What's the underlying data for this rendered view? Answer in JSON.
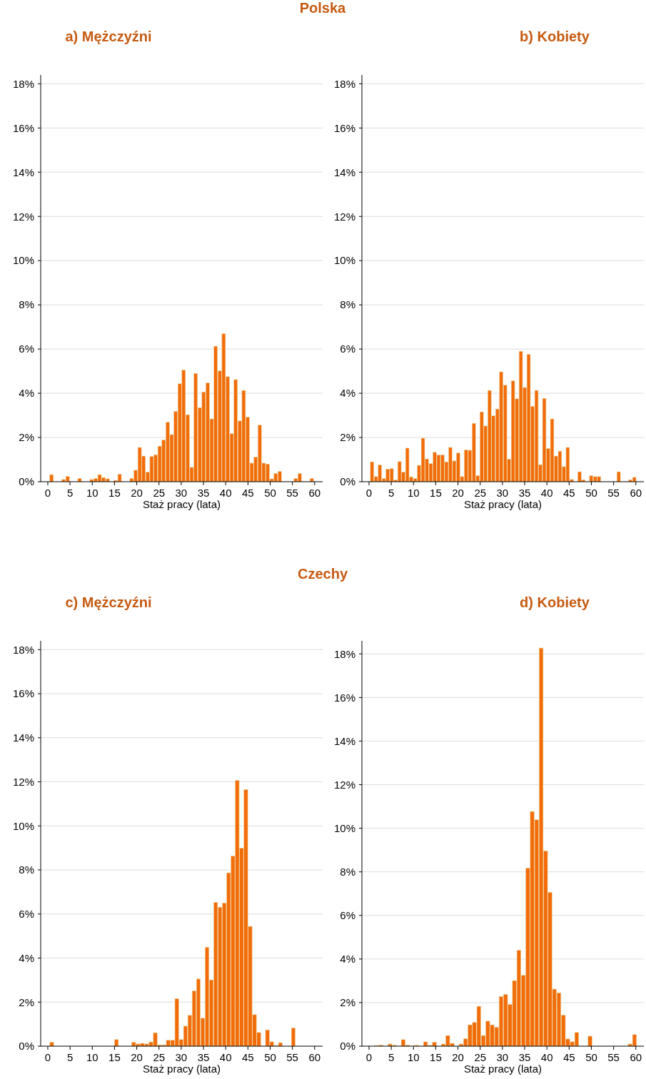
{
  "chart_data": [
    {
      "type": "histogram",
      "title": "a) Mężczyźni",
      "annotations": [
        "Polska"
      ],
      "xlabel": "Staż pracy (lata)",
      "color": "#f36c0a",
      "grid": "y",
      "bins": [
        0.4,
        1.3,
        2.2,
        3.1,
        4.0,
        4.9,
        5.8,
        6.7,
        7.6,
        8.5,
        9.4,
        10.3,
        11.2,
        12.1,
        13.0,
        13.9,
        14.8,
        15.7,
        16.6,
        17.5,
        18.4,
        19.3,
        20.2,
        21.1,
        22.0,
        22.9,
        23.8,
        24.7,
        25.6,
        26.5,
        27.4,
        28.3,
        29.2,
        30.1,
        31.0,
        31.9,
        32.8,
        33.7,
        34.6,
        35.5,
        36.4,
        37.3,
        38.2,
        39.1,
        40.0,
        40.9,
        41.8,
        42.7,
        43.6,
        44.5,
        45.4,
        46.3,
        47.2,
        48.1,
        49.0,
        49.9,
        50.8,
        51.7,
        52.6,
        53.5,
        54.4,
        55.3,
        56.2,
        57.1,
        58.0,
        58.9,
        59.8
      ],
      "values": [
        0.32,
        0,
        0,
        0.1,
        0.24,
        0,
        0,
        0.15,
        0,
        0,
        0.1,
        0.15,
        0.32,
        0.19,
        0.13,
        0,
        0.06,
        0.34,
        0,
        0,
        0.15,
        0.52,
        1.55,
        1.16,
        0.43,
        1.14,
        1.22,
        1.61,
        1.89,
        2.69,
        2.13,
        3.18,
        4.43,
        5.05,
        3.03,
        0.65,
        4.9,
        3.35,
        4.06,
        4.47,
        2.84,
        6.13,
        5.01,
        6.69,
        4.75,
        2.17,
        4.62,
        2.75,
        4.13,
        2.92,
        0.84,
        1.12,
        2.56,
        0.84,
        0.8,
        0.13,
        0.37,
        0.47,
        0,
        0,
        0,
        0.15,
        0.37,
        0,
        0,
        0.15
      ],
      "xlim": [
        -1.6,
        61.8
      ],
      "xticks": [
        0,
        5,
        10,
        15,
        20,
        25,
        30,
        35,
        40,
        45,
        50,
        55,
        60
      ],
      "ylim": [
        0,
        18.4
      ],
      "yticks": [
        {
          "value": 0,
          "label": "0%"
        },
        {
          "value": 2,
          "label": "2%"
        },
        {
          "value": 4,
          "label": "4%"
        },
        {
          "value": 6,
          "label": "6%"
        },
        {
          "value": 8,
          "label": "8%"
        },
        {
          "value": 10,
          "label": "10%"
        },
        {
          "value": 12,
          "label": "12%"
        },
        {
          "value": 14,
          "label": "14%"
        },
        {
          "value": 16,
          "label": "16%"
        },
        {
          "value": 18,
          "label": "18%"
        }
      ]
    },
    {
      "type": "histogram",
      "title": "b) Kobiety",
      "xlabel": "Staż pracy (lata)",
      "color": "#f36c0a",
      "grid": "y",
      "bins": [
        0.25,
        1.13,
        2.01,
        2.89,
        3.77,
        4.65,
        5.53,
        6.41,
        7.29,
        8.17,
        9.05,
        9.93,
        10.81,
        11.69,
        12.57,
        13.45,
        14.33,
        15.21,
        16.09,
        16.97,
        17.85,
        18.73,
        19.61,
        20.49,
        21.37,
        22.25,
        23.13,
        24.01,
        24.89,
        25.77,
        26.65,
        27.53,
        28.41,
        29.29,
        30.17,
        31.05,
        31.93,
        32.81,
        33.69,
        34.57,
        35.45,
        36.33,
        37.21,
        38.09,
        38.97,
        39.85,
        40.73,
        41.61,
        42.49,
        43.37,
        44.25,
        45.13,
        46.01,
        46.89,
        47.77,
        48.65,
        49.53,
        50.41,
        51.29,
        52.17,
        53.05,
        53.93,
        54.81,
        55.69,
        56.57,
        57.45,
        58.33,
        59.21,
        60.09
      ],
      "values": [
        0.9,
        0.23,
        0.76,
        0.14,
        0.57,
        0.59,
        0.08,
        0.91,
        0.43,
        1.52,
        0.22,
        0.14,
        0.74,
        1.97,
        1.03,
        0.82,
        1.33,
        1.21,
        1.21,
        0.9,
        1.55,
        0.94,
        1.3,
        0.23,
        1.44,
        1.42,
        2.64,
        0.28,
        3.16,
        2.52,
        4.13,
        2.98,
        3.29,
        4.97,
        4.37,
        1.02,
        4.56,
        3.75,
        5.9,
        4.26,
        5.76,
        3.41,
        4.13,
        0.77,
        3.77,
        1.5,
        2.84,
        1.16,
        1.38,
        0.68,
        1.55,
        0.1,
        0,
        0.45,
        0.09,
        0,
        0.27,
        0.23,
        0.23,
        0,
        0,
        0,
        0,
        0.45,
        0,
        0,
        0.09,
        0.2
      ],
      "xlim": [
        -1.6,
        61.8
      ],
      "xticks": [
        0,
        5,
        10,
        15,
        20,
        25,
        30,
        35,
        40,
        45,
        50,
        55,
        60
      ],
      "ylim": [
        0,
        18.4
      ],
      "yticks": [
        {
          "value": 0,
          "label": "0%"
        },
        {
          "value": 2,
          "label": "2%"
        },
        {
          "value": 4,
          "label": "4%"
        },
        {
          "value": 6,
          "label": "6%"
        },
        {
          "value": 8,
          "label": "8%"
        },
        {
          "value": 10,
          "label": "10%"
        },
        {
          "value": 12,
          "label": "12%"
        },
        {
          "value": 14,
          "label": "14%"
        },
        {
          "value": 16,
          "label": "16%"
        },
        {
          "value": 18,
          "label": "18%"
        }
      ]
    },
    {
      "type": "histogram",
      "title": "c) Mężczyźni",
      "annotations": [
        "Czechy"
      ],
      "xlabel": "Staż pracy (lata)",
      "color": "#f36c0a",
      "grid": "y",
      "bins": [
        0.4,
        1.37,
        2.34,
        3.31,
        4.28,
        5.25,
        6.22,
        7.19,
        8.16,
        9.13,
        10.1,
        11.07,
        12.04,
        13.01,
        13.98,
        14.95,
        15.92,
        16.89,
        17.86,
        18.83,
        19.8,
        20.77,
        21.74,
        22.71,
        23.68,
        24.65,
        25.62,
        26.59,
        27.56,
        28.53,
        29.5,
        30.47,
        31.44,
        32.41,
        33.38,
        34.35,
        35.32,
        36.29,
        37.26,
        38.23,
        39.2,
        40.17,
        41.14,
        42.11,
        43.08,
        44.05,
        45.02,
        45.99,
        46.96,
        47.93,
        48.9,
        49.87,
        50.84,
        51.81,
        52.78,
        53.75,
        54.72,
        55.69
      ],
      "values": [
        0.18,
        0,
        0,
        0,
        0,
        0,
        0,
        0,
        0,
        0,
        0,
        0,
        0,
        0,
        0,
        0.3,
        0,
        0,
        0,
        0.18,
        0.1,
        0.13,
        0.1,
        0.19,
        0.61,
        0.06,
        0.06,
        0.27,
        0.27,
        2.16,
        0.3,
        0.91,
        1.4,
        2.51,
        3.05,
        1.27,
        4.49,
        3.01,
        6.53,
        6.31,
        6.5,
        7.87,
        8.63,
        12.06,
        8.99,
        11.65,
        5.44,
        1.43,
        0.62,
        0,
        0.74,
        0.2,
        0.03,
        0.16,
        0,
        0,
        0.83
      ],
      "xlim": [
        -1.6,
        61.8
      ],
      "xticks": [
        0,
        5,
        10,
        15,
        20,
        25,
        30,
        35,
        40,
        45,
        50,
        55,
        60
      ],
      "ylim": [
        0,
        18.4
      ],
      "yticks": [
        {
          "value": 0,
          "label": "0%"
        },
        {
          "value": 2,
          "label": "2%"
        },
        {
          "value": 4,
          "label": "4%"
        },
        {
          "value": 6,
          "label": "6%"
        },
        {
          "value": 8,
          "label": "8%"
        },
        {
          "value": 10,
          "label": "10%"
        },
        {
          "value": 12,
          "label": "12%"
        },
        {
          "value": 14,
          "label": "14%"
        },
        {
          "value": 16,
          "label": "16%"
        },
        {
          "value": 18,
          "label": "18%"
        }
      ]
    },
    {
      "type": "histogram",
      "title": "d) Kobiety",
      "xlabel": "Staż pracy (lata)",
      "color": "#f36c0a",
      "grid": "y",
      "bins": [
        1.2,
        2.2,
        3.2,
        4.2,
        5.2,
        6.2,
        7.2,
        8.2,
        9.2,
        10.2,
        11.2,
        12.2,
        13.2,
        14.2,
        15.2,
        16.2,
        17.2,
        18.2,
        19.2,
        20.2,
        21.2,
        22.2,
        23.2,
        24.2,
        25.2,
        26.2,
        27.2,
        28.2,
        29.2,
        30.2,
        31.2,
        32.2,
        33.2,
        34.2,
        35.2,
        36.2,
        37.2,
        38.2,
        39.2,
        40.2,
        41.2,
        42.2,
        43.2,
        44.2,
        45.2,
        46.2,
        47.2,
        48.2,
        49.2,
        50.2,
        51.2,
        52.2,
        53.2,
        54.2,
        55.2,
        56.2,
        57.2,
        58.2,
        59.2,
        60.2
      ],
      "values": [
        0.03,
        0.05,
        0,
        0.1,
        0.04,
        0,
        0.3,
        0.05,
        0,
        0.04,
        0,
        0.2,
        0.04,
        0.18,
        0,
        0.1,
        0.49,
        0.13,
        0,
        0.1,
        0.34,
        0.98,
        1.09,
        1.83,
        0.49,
        1.15,
        0.98,
        0.87,
        2.28,
        2.38,
        1.92,
        3.01,
        4.4,
        3.25,
        8.17,
        10.77,
        10.39,
        18.27,
        8.96,
        7.06,
        2.62,
        2.45,
        1.43,
        0.33,
        0.2,
        0.63,
        0,
        0,
        0.46,
        0,
        0,
        0,
        0,
        0,
        0,
        0,
        0,
        0.1,
        0.53
      ],
      "xlim": [
        -1.6,
        61.8
      ],
      "xticks": [
        0,
        5,
        10,
        15,
        20,
        25,
        30,
        35,
        40,
        45,
        50,
        55,
        60
      ],
      "ylim": [
        0,
        18.6
      ],
      "yticks": [
        {
          "value": 0,
          "label": "0%"
        },
        {
          "value": 2,
          "label": "2%"
        },
        {
          "value": 4,
          "label": "4%"
        },
        {
          "value": 6,
          "label": "6%"
        },
        {
          "value": 8,
          "label": "8%"
        },
        {
          "value": 10,
          "label": "10%"
        },
        {
          "value": 12,
          "label": "12%"
        },
        {
          "value": 14,
          "label": "14%"
        },
        {
          "value": 16,
          "label": "16%"
        },
        {
          "value": 18,
          "label": "18%"
        }
      ]
    }
  ]
}
